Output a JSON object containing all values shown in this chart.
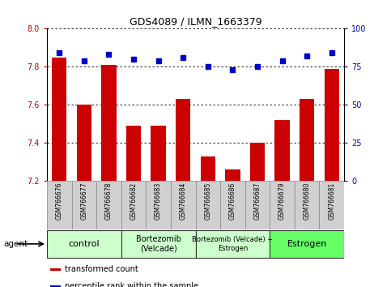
{
  "title": "GDS4089 / ILMN_1663379",
  "samples": [
    "GSM766676",
    "GSM766677",
    "GSM766678",
    "GSM766682",
    "GSM766683",
    "GSM766684",
    "GSM766685",
    "GSM766686",
    "GSM766687",
    "GSM766679",
    "GSM766680",
    "GSM766681"
  ],
  "transformed_count": [
    7.85,
    7.6,
    7.81,
    7.49,
    7.49,
    7.63,
    7.33,
    7.26,
    7.4,
    7.52,
    7.63,
    7.79
  ],
  "percentile_rank": [
    84,
    79,
    83,
    80,
    79,
    81,
    75,
    73,
    75,
    79,
    82,
    84
  ],
  "ylim_left": [
    7.2,
    8.0
  ],
  "ylim_right": [
    0,
    100
  ],
  "yticks_left": [
    7.2,
    7.4,
    7.6,
    7.8,
    8.0
  ],
  "yticks_right": [
    0,
    25,
    50,
    75,
    100
  ],
  "groups": [
    {
      "label": "control",
      "start": 0,
      "end": 3,
      "color": "#ccffcc",
      "fontsize": 8
    },
    {
      "label": "Bortezomib\n(Velcade)",
      "start": 3,
      "end": 6,
      "color": "#ccffcc",
      "fontsize": 7
    },
    {
      "label": "Bortezomib (Velcade) +\nEstrogen",
      "start": 6,
      "end": 9,
      "color": "#ccffcc",
      "fontsize": 6
    },
    {
      "label": "Estrogen",
      "start": 9,
      "end": 12,
      "color": "#66ff66",
      "fontsize": 8
    }
  ],
  "bar_color": "#cc0000",
  "dot_color": "#0000cc",
  "grid_color": "#000000",
  "background_color": "#ffffff",
  "tick_label_color_left": "#cc0000",
  "tick_label_color_right": "#0000cc",
  "bar_bottom": 7.2,
  "legend_items": [
    {
      "color": "#cc0000",
      "label": "transformed count",
      "marker": "square"
    },
    {
      "color": "#0000cc",
      "label": "percentile rank within the sample",
      "marker": "square"
    }
  ]
}
